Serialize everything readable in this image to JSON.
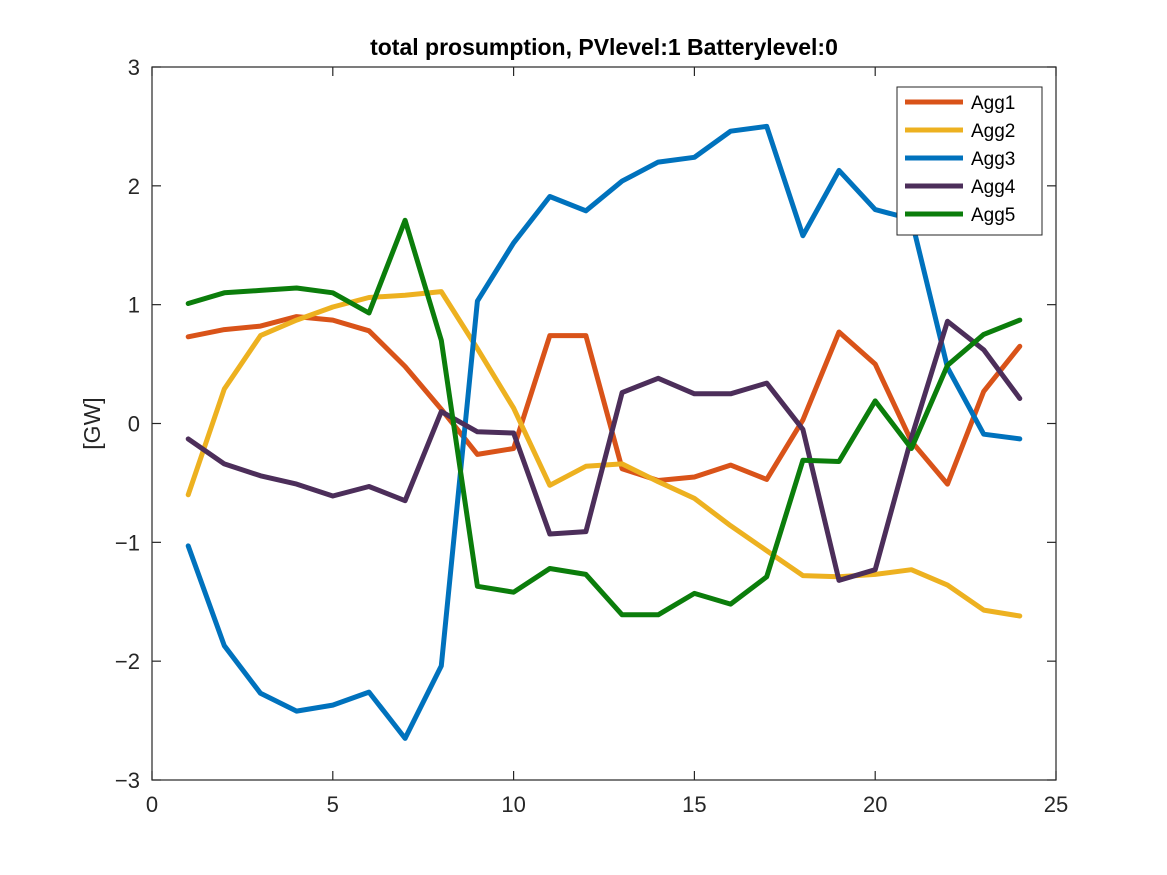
{
  "chart_data": {
    "type": "line",
    "title": "total prosumption, PVlevel:1 Batterylevel:0",
    "xlabel": "",
    "ylabel": "[GW]",
    "xlim": [
      0,
      25
    ],
    "ylim": [
      -3,
      3
    ],
    "xticks": [
      0,
      5,
      10,
      15,
      20,
      25
    ],
    "yticks": [
      -3,
      -2,
      -1,
      0,
      1,
      2,
      3
    ],
    "xtick_labels": [
      "0",
      "5",
      "10",
      "15",
      "20",
      "25"
    ],
    "ytick_labels": [
      "−3",
      "−2",
      "−1",
      "0",
      "1",
      "2",
      "3"
    ],
    "grid": false,
    "legend_position": "top-right",
    "x": [
      1,
      2,
      3,
      4,
      5,
      6,
      7,
      8,
      9,
      10,
      11,
      12,
      13,
      14,
      15,
      16,
      17,
      18,
      19,
      20,
      21,
      22,
      23,
      24
    ],
    "series": [
      {
        "name": "Agg1",
        "color": "#D95319",
        "values": [
          0.73,
          0.79,
          0.82,
          0.9,
          0.87,
          0.78,
          0.48,
          0.12,
          -0.26,
          -0.21,
          0.74,
          0.74,
          -0.38,
          -0.48,
          -0.45,
          -0.35,
          -0.47,
          0.03,
          0.77,
          0.5,
          -0.15,
          -0.51,
          0.27,
          0.65
        ]
      },
      {
        "name": "Agg2",
        "color": "#EDB120",
        "values": [
          -0.6,
          0.29,
          0.74,
          0.87,
          0.98,
          1.06,
          1.08,
          1.11,
          0.63,
          0.13,
          -0.52,
          -0.36,
          -0.34,
          -0.49,
          -0.63,
          -0.86,
          -1.07,
          -1.28,
          -1.29,
          -1.27,
          -1.23,
          -1.36,
          -1.57,
          -1.62
        ]
      },
      {
        "name": "Agg3",
        "color": "#0072BD",
        "values": [
          -1.03,
          -1.87,
          -2.27,
          -2.42,
          -2.37,
          -2.26,
          -2.65,
          -2.04,
          1.03,
          1.52,
          1.91,
          1.79,
          2.04,
          2.2,
          2.24,
          2.46,
          2.5,
          1.58,
          2.13,
          1.8,
          1.72,
          0.47,
          -0.09,
          -0.13
        ]
      },
      {
        "name": "Agg4",
        "color": "#4C2E5A",
        "values": [
          -0.13,
          -0.34,
          -0.44,
          -0.51,
          -0.61,
          -0.53,
          -0.65,
          0.1,
          -0.07,
          -0.08,
          -0.93,
          -0.91,
          0.26,
          0.38,
          0.25,
          0.25,
          0.34,
          -0.05,
          -1.32,
          -1.23,
          -0.12,
          0.86,
          0.62,
          0.21
        ]
      },
      {
        "name": "Agg5",
        "color": "#0B7D0B",
        "values": [
          1.01,
          1.1,
          1.12,
          1.14,
          1.1,
          0.93,
          1.71,
          0.7,
          -1.37,
          -1.42,
          -1.22,
          -1.27,
          -1.61,
          -1.61,
          -1.43,
          -1.52,
          -1.29,
          -0.31,
          -0.32,
          0.19,
          -0.21,
          0.49,
          0.75,
          0.87
        ]
      }
    ]
  }
}
